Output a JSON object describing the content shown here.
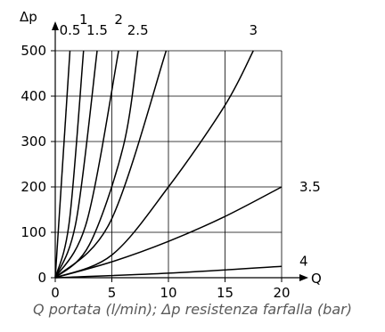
{
  "chart_data": {
    "type": "line",
    "xlabel": "Q",
    "ylabel": "Δp",
    "xlim": [
      0,
      20
    ],
    "ylim": [
      0,
      500
    ],
    "x_ticks": [
      0,
      5,
      10,
      15,
      20
    ],
    "y_ticks": [
      0,
      100,
      200,
      300,
      400,
      500
    ],
    "x_tick_labels": [
      "0",
      "5",
      "10",
      "15",
      "20"
    ],
    "y_tick_labels": [
      "0",
      "100",
      "200",
      "300",
      "400",
      "500"
    ],
    "grid": true,
    "series": [
      {
        "name": "0.5",
        "label_pos": "top",
        "points": [
          [
            0,
            0
          ],
          [
            1.3,
            500
          ]
        ]
      },
      {
        "name": "1",
        "label_pos": "top",
        "points": [
          [
            0,
            0
          ],
          [
            1.25,
            125
          ],
          [
            2.5,
            500
          ]
        ]
      },
      {
        "name": "1.5",
        "label_pos": "top",
        "points": [
          [
            0,
            0
          ],
          [
            1.85,
            125
          ],
          [
            3.7,
            500
          ]
        ]
      },
      {
        "name": "2",
        "label_pos": "top",
        "points": [
          [
            0,
            0
          ],
          [
            2.8,
            125
          ],
          [
            5.6,
            500
          ]
        ]
      },
      {
        "name": "2.5",
        "label_pos": "top",
        "points": [
          [
            0,
            0
          ],
          [
            3.0,
            72
          ],
          [
            6.0,
            288
          ],
          [
            7.3,
            500
          ]
        ]
      },
      {
        "name": "",
        "label_pos": "none",
        "points": [
          [
            0,
            0
          ],
          [
            4.9,
            125
          ],
          [
            9.8,
            500
          ]
        ]
      },
      {
        "name": "3",
        "label_pos": "top",
        "points": [
          [
            0,
            0
          ],
          [
            5,
            50
          ],
          [
            10,
            200
          ],
          [
            15,
            380
          ],
          [
            17.5,
            500
          ]
        ]
      },
      {
        "name": "3.5",
        "label_pos": "right",
        "points": [
          [
            0,
            0
          ],
          [
            5,
            35
          ],
          [
            10,
            80
          ],
          [
            15,
            135
          ],
          [
            20,
            200
          ]
        ]
      },
      {
        "name": "4",
        "label_pos": "right",
        "points": [
          [
            0,
            0
          ],
          [
            10,
            10
          ],
          [
            20,
            25
          ]
        ]
      }
    ],
    "caption": "Q portata (l/min); Δp resistenza farfalla (bar)"
  }
}
